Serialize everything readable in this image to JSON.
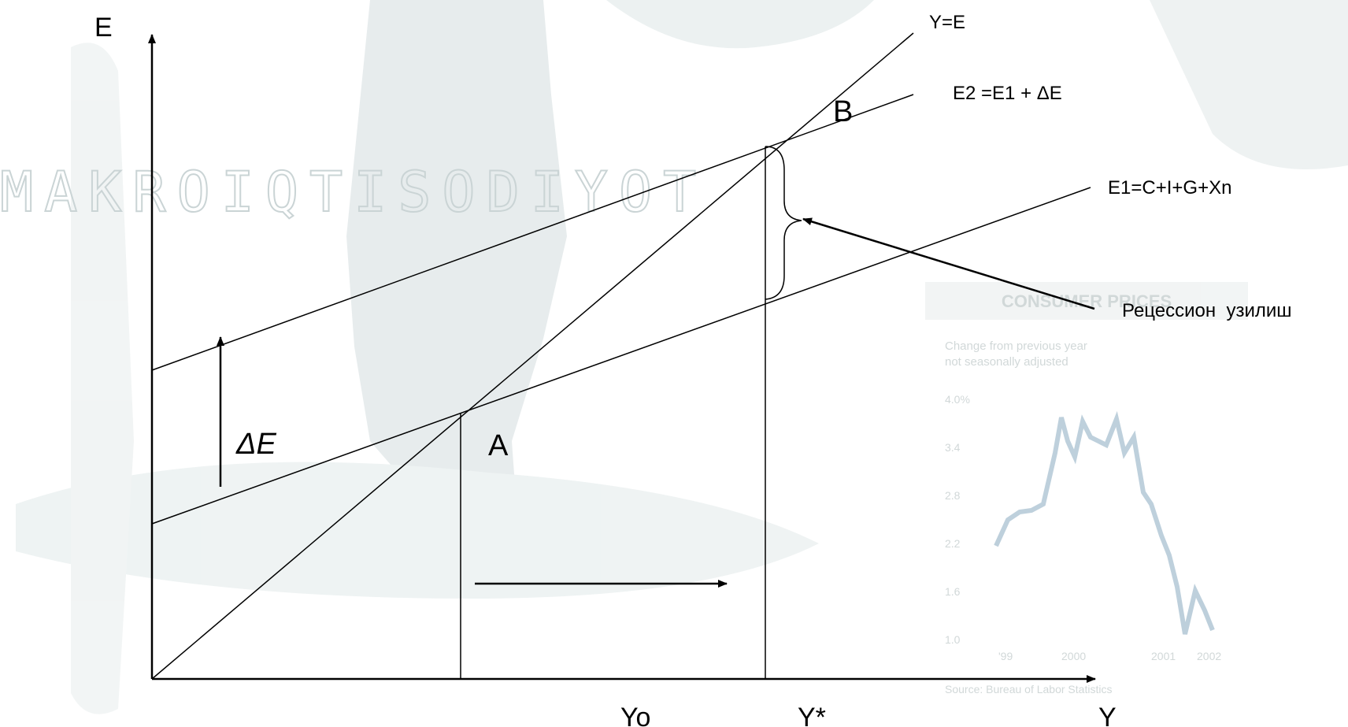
{
  "watermark": {
    "word": "MAKROIQTISODIYOT",
    "inset_chart": {
      "title": "CONSUMER PRICES",
      "subtitle_1": "Change from previous year",
      "subtitle_2": "not seasonally adjusted",
      "y_ticks": [
        "4.0%",
        "3.4",
        "2.8",
        "2.2",
        "1.6",
        "1.0"
      ],
      "x_ticks": [
        "'99",
        "2000",
        "2001",
        "2002"
      ],
      "source": "Source: Bureau of Labor Statistics"
    }
  },
  "axes": {
    "y_label": "E",
    "x_label": "Y"
  },
  "lines": {
    "y_eq_e": "Y=E",
    "e2": "E2 =E1 + ΔE",
    "e1": "E1=C+I+G+Xn"
  },
  "points": {
    "a": "A",
    "b": "B"
  },
  "x_marks": {
    "yo": "Yo",
    "ystar": "Y*"
  },
  "delta_label": "ΔE",
  "gap_label": "Рецессион  узилиш",
  "colors": {
    "ink": "#000000",
    "watermark": "#b9c6c8",
    "inset_line": "#a8c0d0"
  }
}
